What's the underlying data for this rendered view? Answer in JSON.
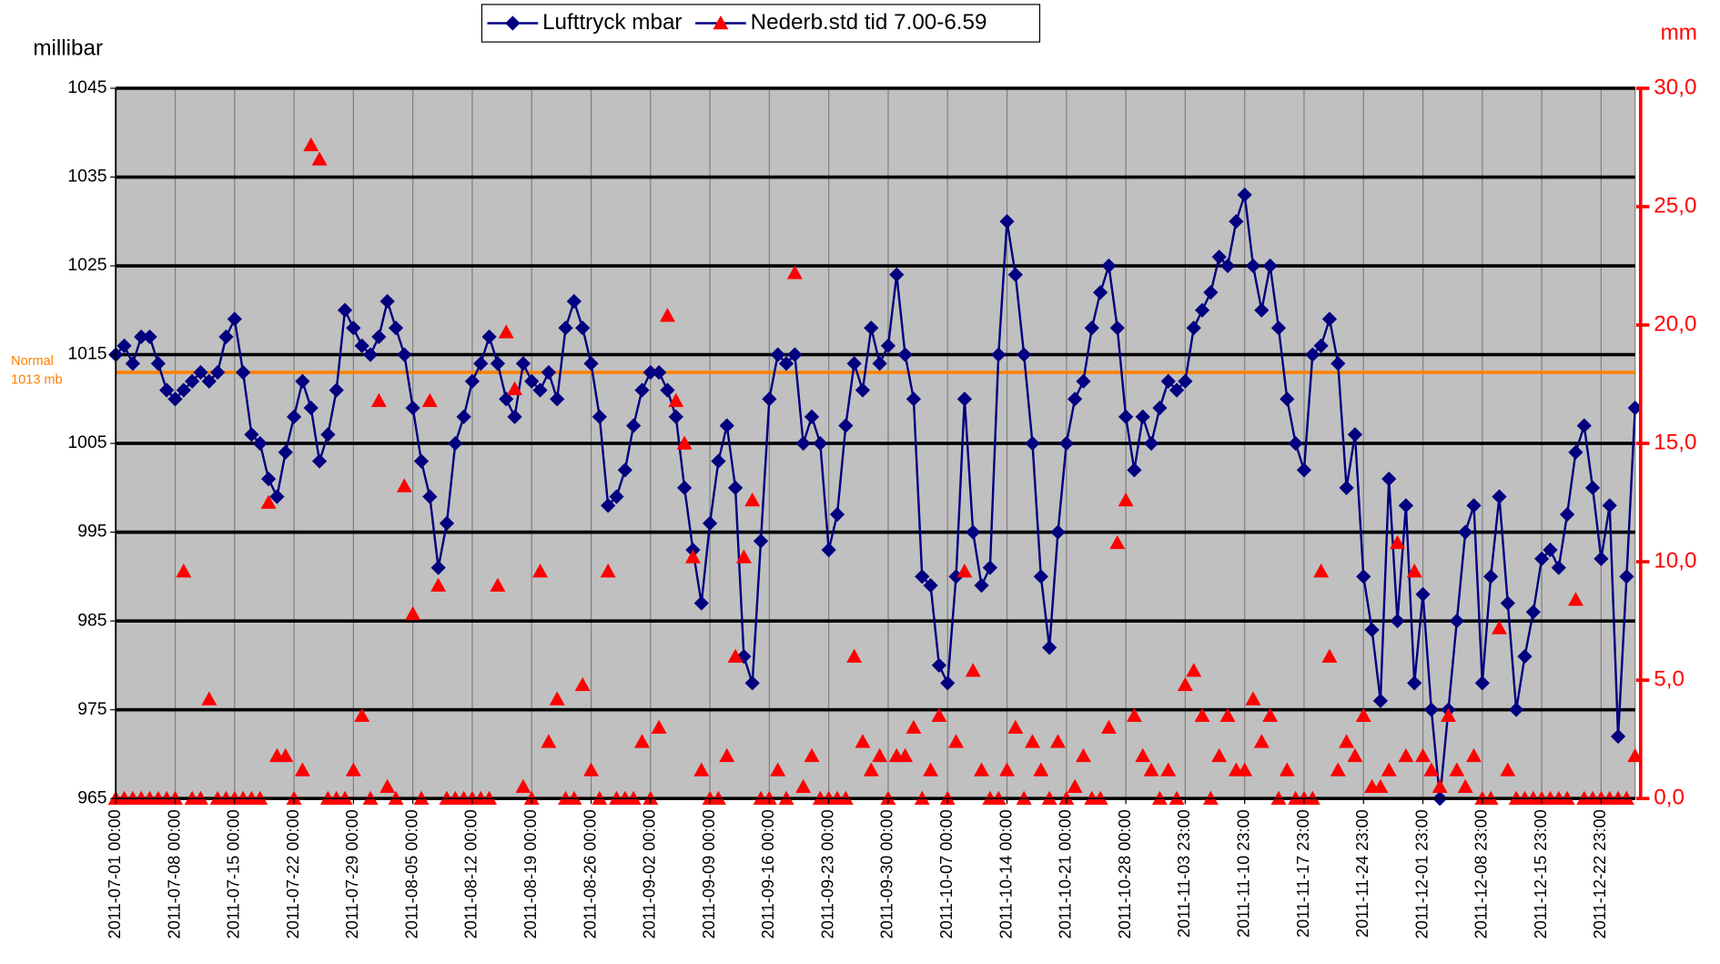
{
  "chart_data": {
    "type": "line",
    "y_label": "millibar",
    "y2_label": "mm",
    "categories": [
      "2011-07-01 00:00",
      null,
      null,
      null,
      null,
      null,
      null,
      "2011-07-08 00:00",
      null,
      null,
      null,
      null,
      null,
      null,
      "2011-07-15 00:00",
      null,
      null,
      null,
      null,
      null,
      null,
      "2011-07-22 00:00",
      null,
      null,
      null,
      null,
      null,
      null,
      "2011-07-29 00:00",
      null,
      null,
      null,
      null,
      null,
      null,
      "2011-08-05 00:00",
      null,
      null,
      null,
      null,
      null,
      null,
      "2011-08-12 00:00",
      null,
      null,
      null,
      null,
      null,
      null,
      "2011-08-19 00:00",
      null,
      null,
      null,
      null,
      null,
      null,
      "2011-08-26 00:00",
      null,
      null,
      null,
      null,
      null,
      null,
      "2011-09-02 00:00",
      null,
      null,
      null,
      null,
      null,
      null,
      "2011-09-09 00:00",
      null,
      null,
      null,
      null,
      null,
      null,
      "2011-09-16 00:00",
      null,
      null,
      null,
      null,
      null,
      null,
      "2011-09-23 00:00",
      null,
      null,
      null,
      null,
      null,
      null,
      "2011-09-30 00:00",
      null,
      null,
      null,
      null,
      null,
      null,
      "2011-10-07 00:00",
      null,
      null,
      null,
      null,
      null,
      null,
      "2011-10-14 00:00",
      null,
      null,
      null,
      null,
      null,
      null,
      "2011-10-21 00:00",
      null,
      null,
      null,
      null,
      null,
      null,
      "2011-10-28 00:00",
      null,
      null,
      null,
      null,
      null,
      null,
      "2011-11-03 23:00",
      null,
      null,
      null,
      null,
      null,
      null,
      "2011-11-10 23:00",
      null,
      null,
      null,
      null,
      null,
      null,
      "2011-11-17 23:00",
      null,
      null,
      null,
      null,
      null,
      null,
      "2011-11-24 23:00",
      null,
      null,
      null,
      null,
      null,
      null,
      "2011-12-01 23:00",
      null,
      null,
      null,
      null,
      null,
      null,
      "2011-12-08 23:00",
      null,
      null,
      null,
      null,
      null,
      null,
      "2011-12-15 23:00",
      null,
      null,
      null,
      null,
      null,
      null,
      "2011-12-22 23:00",
      null,
      null,
      null,
      null
    ],
    "series": [
      {
        "name": "Lufttryck mbar",
        "color": "#000080",
        "marker": "diamond",
        "axis": "y",
        "values": [
          1015,
          1016,
          1014,
          1017,
          1017,
          1014,
          1011,
          1010,
          1011,
          1012,
          1013,
          1012,
          1013,
          1017,
          1019,
          1013,
          1006,
          1005,
          1001,
          999,
          1004,
          1008,
          1012,
          1009,
          1003,
          1006,
          1011,
          1020,
          1018,
          1016,
          1015,
          1017,
          1021,
          1018,
          1015,
          1009,
          1003,
          999,
          991,
          996,
          1005,
          1008,
          1012,
          1014,
          1017,
          1014,
          1010,
          1008,
          1014,
          1012,
          1011,
          1013,
          1010,
          1018,
          1021,
          1018,
          1014,
          1008,
          998,
          999,
          1002,
          1007,
          1011,
          1013,
          1013,
          1011,
          1008,
          1000,
          993,
          987,
          996,
          1003,
          1007,
          1000,
          981,
          978,
          994,
          1010,
          1015,
          1014,
          1015,
          1005,
          1008,
          1005,
          993,
          997,
          1007,
          1014,
          1011,
          1018,
          1014,
          1016,
          1024,
          1015,
          1010,
          990,
          989,
          980,
          978,
          990,
          1010,
          995,
          989,
          991,
          1015,
          1030,
          1024,
          1015,
          1005,
          990,
          982,
          995,
          1005,
          1010,
          1012,
          1018,
          1022,
          1025,
          1018,
          1008,
          1002,
          1008,
          1005,
          1009,
          1012,
          1011,
          1012,
          1018,
          1020,
          1022,
          1026,
          1025,
          1030,
          1033,
          1025,
          1020,
          1025,
          1018,
          1010,
          1005,
          1002,
          1015,
          1016,
          1019,
          1014,
          1000,
          1006,
          990,
          984,
          976,
          1001,
          985,
          998,
          978,
          988,
          975,
          965,
          975,
          985,
          995,
          998,
          978,
          990,
          999,
          987,
          975,
          981,
          986,
          992,
          993,
          991,
          997,
          1004,
          1007,
          1000,
          992,
          998,
          972,
          990,
          1009
        ]
      },
      {
        "name": "Nederb.std tid 7.00-6.59",
        "color": "#ff0000",
        "marker": "triangle",
        "axis": "y2",
        "values": [
          0,
          0,
          0,
          0,
          0,
          0,
          0,
          0,
          9.6,
          0,
          0,
          4.2,
          0,
          0,
          0,
          0,
          0,
          0,
          12.5,
          1.8,
          1.8,
          0,
          1.2,
          27.6,
          27,
          0,
          0,
          0,
          1.2,
          3.5,
          0,
          16.8,
          0.5,
          0,
          13.2,
          7.8,
          0,
          16.8,
          9,
          0,
          0,
          0,
          0,
          0,
          0,
          9,
          19.7,
          17.3,
          0.5,
          0,
          9.6,
          2.4,
          4.2,
          0,
          0,
          4.8,
          1.2,
          0,
          9.6,
          0,
          0,
          0,
          2.4,
          0,
          3,
          20.4,
          16.8,
          15,
          10.2,
          1.2,
          0,
          0,
          1.8,
          6,
          10.2,
          12.6,
          0,
          0,
          1.2,
          0,
          22.2,
          0.5,
          1.8,
          0,
          0,
          0,
          0,
          6,
          2.4,
          1.2,
          1.8,
          0,
          1.8,
          1.8,
          3,
          0,
          1.2,
          3.5,
          0,
          2.4,
          9.6,
          5.4,
          1.2,
          0,
          0,
          1.2,
          3,
          0,
          2.4,
          1.2,
          0,
          2.4,
          0,
          0.5,
          1.8,
          0,
          0,
          3,
          10.8,
          12.6,
          3.5,
          1.8,
          1.2,
          0,
          1.2,
          0,
          4.8,
          5.4,
          3.5,
          0,
          1.8,
          3.5,
          1.2,
          1.2,
          4.2,
          2.4,
          3.5,
          0,
          1.2,
          0,
          0,
          0,
          9.6,
          6,
          1.2,
          2.4,
          1.8,
          3.5,
          0.5,
          0.5,
          1.2,
          10.8,
          1.8,
          9.6,
          1.8,
          1.2,
          0.5,
          3.5,
          1.2,
          0.5,
          1.8,
          0,
          0,
          7.2,
          1.2,
          0,
          0,
          0,
          0,
          0,
          0,
          0,
          8.4,
          0,
          0,
          0,
          0,
          0,
          0,
          1.8
        ]
      }
    ],
    "ylim": [
      965,
      1045
    ],
    "yticks": [
      965,
      975,
      985,
      995,
      1005,
      1015,
      1025,
      1035,
      1045
    ],
    "y2lim": [
      0,
      30
    ],
    "y2ticks": [
      {
        "value": 0,
        "label": "0,0"
      },
      {
        "value": 5,
        "label": "5,0"
      },
      {
        "value": 10,
        "label": "10,0"
      },
      {
        "value": 15,
        "label": "15,0"
      },
      {
        "value": 20,
        "label": "20,0"
      },
      {
        "value": 25,
        "label": "25,0"
      },
      {
        "value": 30,
        "label": "30,0"
      }
    ],
    "y2_color": "#ff0000",
    "reference_line": {
      "value": 1013,
      "label": [
        "Normal",
        "1013 mb"
      ],
      "color": "#ff8000"
    },
    "plot_background": "#c0c0c0",
    "grid": true,
    "legend": "top"
  }
}
